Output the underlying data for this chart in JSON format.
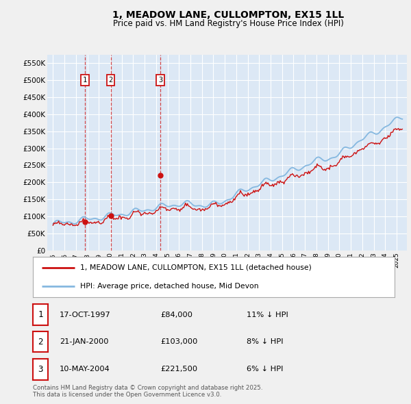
{
  "title_line1": "1, MEADOW LANE, CULLOMPTON, EX15 1LL",
  "title_line2": "Price paid vs. HM Land Registry's House Price Index (HPI)",
  "background_color": "#f0f0f0",
  "plot_bg_color": "#dce8f5",
  "grid_color": "#ffffff",
  "hpi_color": "#85b8e0",
  "price_color": "#cc1111",
  "ylim": [
    0,
    575000
  ],
  "yticks": [
    0,
    50000,
    100000,
    150000,
    200000,
    250000,
    300000,
    350000,
    400000,
    450000,
    500000,
    550000
  ],
  "ytick_labels": [
    "£0",
    "£50K",
    "£100K",
    "£150K",
    "£200K",
    "£250K",
    "£300K",
    "£350K",
    "£400K",
    "£450K",
    "£500K",
    "£550K"
  ],
  "sale_prices": [
    84000,
    103000,
    221500
  ],
  "sale_labels": [
    "1",
    "2",
    "3"
  ],
  "sale_date_strs": [
    "17-OCT-1997",
    "21-JAN-2000",
    "10-MAY-2004"
  ],
  "sale_price_strs": [
    "£84,000",
    "£103,000",
    "£221,500"
  ],
  "sale_hpi_strs": [
    "11% ↓ HPI",
    "8% ↓ HPI",
    "6% ↓ HPI"
  ],
  "legend_line1": "1, MEADOW LANE, CULLOMPTON, EX15 1LL (detached house)",
  "legend_line2": "HPI: Average price, detached house, Mid Devon",
  "footer": "Contains HM Land Registry data © Crown copyright and database right 2025.\nThis data is licensed under the Open Government Licence v3.0."
}
